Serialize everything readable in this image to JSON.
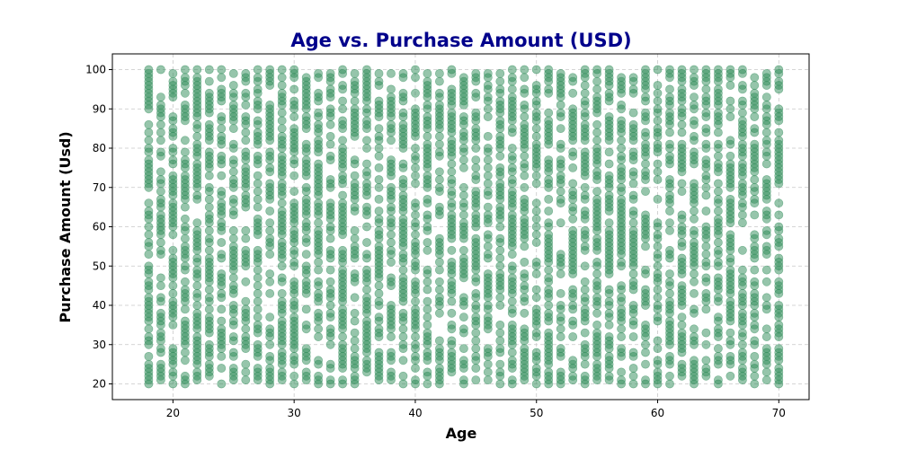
{
  "chart_data": {
    "type": "scatter",
    "title": "Age vs. Purchase Amount (USD)",
    "xlabel": "Age",
    "ylabel": "Purchase Amount (Usd)",
    "xlim": [
      15,
      72.5
    ],
    "ylim": [
      16,
      104
    ],
    "xticks": [
      20,
      30,
      40,
      50,
      60,
      70
    ],
    "yticks": [
      20,
      30,
      40,
      50,
      60,
      70,
      80,
      90,
      100
    ],
    "grid": true,
    "colors": {
      "title": "#00008b",
      "marker": "#2e8b57",
      "grid": "#c8c8c8"
    },
    "marker_alpha": 0.5,
    "age_min": 18,
    "age_max": 70,
    "purchase_min": 20,
    "purchase_max": 100
  }
}
